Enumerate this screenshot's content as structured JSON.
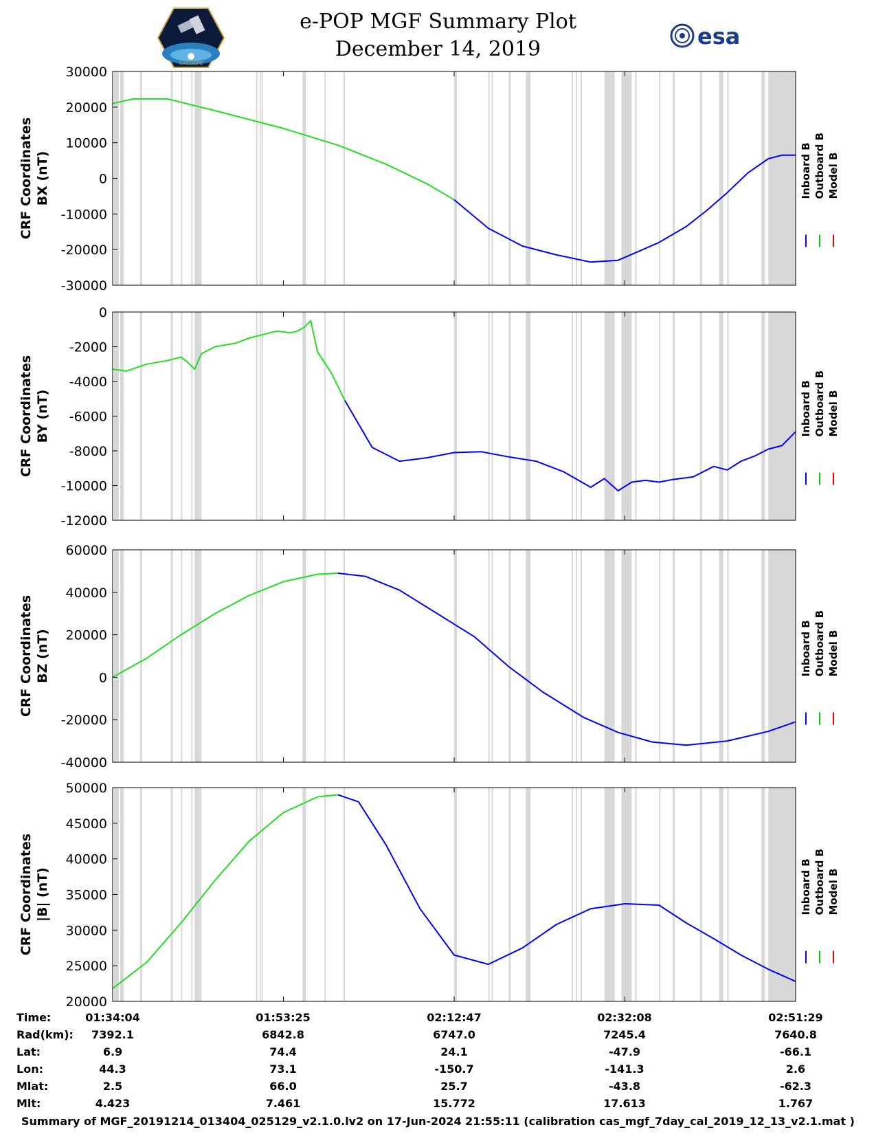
{
  "header": {
    "title_line1": "e-POP MGF Summary Plot",
    "title_line2": "December 14, 2019",
    "logo_left_text": "CASSIOPE",
    "logo_right_text": "esa"
  },
  "legend": {
    "entries": [
      {
        "label": "Inboard B",
        "color": "#0000ff"
      },
      {
        "label": "Outboard B",
        "color": "#00cc00"
      },
      {
        "label": "Model B",
        "color": "#ff0000"
      }
    ]
  },
  "colors": {
    "inboard": "#0000ff",
    "outboard": "#22dd22",
    "model": "#ff0000",
    "gap": "#d8d8d8"
  },
  "chart_data": [
    {
      "type": "line",
      "ylabel_line1": "CRF Coordinates",
      "ylabel_line2": "BX (nT)",
      "ylim": [
        -30000,
        30000
      ],
      "yticks": [
        30000,
        20000,
        10000,
        0,
        -10000,
        -20000,
        -30000
      ],
      "ytick_labels": [
        "30000",
        "20000",
        "10000",
        "0",
        "-10000",
        "-20000",
        "-30000"
      ],
      "series": [
        {
          "name": "Outboard B",
          "x": [
            0,
            0.03,
            0.08,
            0.15,
            0.25,
            0.33,
            0.4,
            0.46,
            0.5
          ],
          "y": [
            21000,
            22300,
            22300,
            19000,
            14000,
            9300,
            4000,
            -1500,
            -6000
          ]
        },
        {
          "name": "Inboard B",
          "x": [
            0.5,
            0.55,
            0.6,
            0.65,
            0.7,
            0.74,
            0.77,
            0.8,
            0.84,
            0.87,
            0.9,
            0.93,
            0.96,
            0.98,
            1.0
          ],
          "y": [
            -6000,
            -14000,
            -19000,
            -21500,
            -23500,
            -23000,
            -20500,
            -18000,
            -13500,
            -9000,
            -4000,
            1500,
            5500,
            6500,
            6500
          ]
        }
      ]
    },
    {
      "type": "line",
      "ylabel_line1": "CRF Coordinates",
      "ylabel_line2": "BY (nT)",
      "ylim": [
        -12000,
        0
      ],
      "yticks": [
        0,
        -2000,
        -4000,
        -6000,
        -8000,
        -10000,
        -12000
      ],
      "ytick_labels": [
        "0",
        "-2000",
        "-4000",
        "-6000",
        "-8000",
        "-10000",
        "-12000"
      ],
      "series": [
        {
          "name": "Outboard B",
          "x": [
            0,
            0.02,
            0.05,
            0.08,
            0.1,
            0.11,
            0.12,
            0.13,
            0.15,
            0.18,
            0.2,
            0.22,
            0.24,
            0.26,
            0.27,
            0.28,
            0.29,
            0.3,
            0.32,
            0.34
          ],
          "y": [
            -3300,
            -3400,
            -3000,
            -2800,
            -2600,
            -2900,
            -3300,
            -2400,
            -2000,
            -1800,
            -1500,
            -1300,
            -1100,
            -1200,
            -1100,
            -900,
            -500,
            -2300,
            -3500,
            -5100
          ]
        },
        {
          "name": "Inboard B",
          "x": [
            0.34,
            0.38,
            0.42,
            0.46,
            0.5,
            0.54,
            0.58,
            0.62,
            0.66,
            0.7,
            0.72,
            0.74,
            0.76,
            0.78,
            0.8,
            0.82,
            0.85,
            0.88,
            0.9,
            0.92,
            0.94,
            0.96,
            0.98,
            1.0
          ],
          "y": [
            -5100,
            -7800,
            -8600,
            -8400,
            -8100,
            -8050,
            -8350,
            -8600,
            -9200,
            -10100,
            -9600,
            -10300,
            -9800,
            -9700,
            -9800,
            -9650,
            -9500,
            -8900,
            -9100,
            -8600,
            -8300,
            -7900,
            -7700,
            -6900
          ]
        }
      ]
    },
    {
      "type": "line",
      "ylabel_line1": "CRF Coordinates",
      "ylabel_line2": "BZ (nT)",
      "ylim": [
        -40000,
        60000
      ],
      "yticks": [
        60000,
        40000,
        20000,
        0,
        -20000,
        -40000
      ],
      "ytick_labels": [
        "60000",
        "40000",
        "20000",
        "0",
        "-20000",
        "-40000"
      ],
      "series": [
        {
          "name": "Outboard B",
          "x": [
            0,
            0.05,
            0.1,
            0.15,
            0.2,
            0.25,
            0.3,
            0.33
          ],
          "y": [
            0,
            9000,
            20000,
            30000,
            38500,
            45000,
            48500,
            49000
          ]
        },
        {
          "name": "Inboard B",
          "x": [
            0.33,
            0.37,
            0.42,
            0.47,
            0.53,
            0.58,
            0.63,
            0.69,
            0.74,
            0.79,
            0.84,
            0.9,
            0.96,
            1.0
          ],
          "y": [
            49000,
            47500,
            41000,
            31000,
            19000,
            5000,
            -7000,
            -19000,
            -26000,
            -30500,
            -32000,
            -30000,
            -25500,
            -21000
          ]
        }
      ]
    },
    {
      "type": "line",
      "ylabel_line1": "CRF Coordinates",
      "ylabel_line2": "|B| (nT)",
      "ylim": [
        20000,
        50000
      ],
      "yticks": [
        50000,
        45000,
        40000,
        35000,
        30000,
        25000,
        20000
      ],
      "ytick_labels": [
        "50000",
        "45000",
        "40000",
        "35000",
        "30000",
        "25000",
        "20000"
      ],
      "series": [
        {
          "name": "Outboard B",
          "x": [
            0,
            0.05,
            0.1,
            0.15,
            0.2,
            0.25,
            0.3,
            0.33
          ],
          "y": [
            21800,
            25500,
            31000,
            37000,
            42500,
            46500,
            48700,
            49000
          ]
        },
        {
          "name": "Inboard B",
          "x": [
            0.33,
            0.36,
            0.4,
            0.45,
            0.5,
            0.55,
            0.6,
            0.65,
            0.7,
            0.75,
            0.8,
            0.84,
            0.88,
            0.92,
            0.96,
            1.0
          ],
          "y": [
            49000,
            48000,
            42000,
            33000,
            26500,
            25200,
            27500,
            30800,
            33000,
            33700,
            33500,
            31000,
            28800,
            26500,
            24500,
            22800
          ]
        }
      ]
    }
  ],
  "xaxis": {
    "tick_fractions": [
      0.0,
      0.25,
      0.5,
      0.75,
      1.0
    ],
    "gap_bands": [
      [
        0.002,
        0.009
      ],
      [
        0.011,
        0.016
      ],
      [
        0.04,
        0.043
      ],
      [
        0.085,
        0.088
      ],
      [
        0.1,
        0.102
      ],
      [
        0.115,
        0.117
      ],
      [
        0.12,
        0.13
      ],
      [
        0.21,
        0.212
      ],
      [
        0.215,
        0.217
      ],
      [
        0.218,
        0.22
      ],
      [
        0.278,
        0.283
      ],
      [
        0.31,
        0.312
      ],
      [
        0.338,
        0.34
      ],
      [
        0.5,
        0.504
      ],
      [
        0.55,
        0.552
      ],
      [
        0.555,
        0.557
      ],
      [
        0.58,
        0.583
      ],
      [
        0.605,
        0.612
      ],
      [
        0.672,
        0.674
      ],
      [
        0.678,
        0.68
      ],
      [
        0.685,
        0.687
      ],
      [
        0.72,
        0.735
      ],
      [
        0.745,
        0.76
      ],
      [
        0.765,
        0.767
      ],
      [
        0.8,
        0.802
      ],
      [
        0.82,
        0.823
      ],
      [
        0.86,
        0.863
      ],
      [
        0.888,
        0.894
      ],
      [
        0.9,
        0.902
      ],
      [
        0.95,
        0.955
      ],
      [
        0.96,
        1.0
      ]
    ]
  },
  "info_table": {
    "labels": [
      "Time:",
      "Rad(km):",
      "Lat:",
      "Lon:",
      "Mlat:",
      "Mlt:"
    ],
    "columns": [
      [
        "01:34:04",
        "7392.1",
        "6.9",
        "44.3",
        "2.5",
        "4.423"
      ],
      [
        "01:53:25",
        "6842.8",
        "74.4",
        "73.1",
        "66.0",
        "7.461"
      ],
      [
        "02:12:47",
        "6747.0",
        "24.1",
        "-150.7",
        "25.7",
        "15.772"
      ],
      [
        "02:32:08",
        "7245.4",
        "-47.9",
        "-141.3",
        "-43.8",
        "17.613"
      ],
      [
        "02:51:29",
        "7640.8",
        "-66.1",
        "2.6",
        "-62.3",
        "1.767"
      ]
    ]
  },
  "footer": {
    "text": "Summary of MGF_20191214_013404_025129_v2.1.0.lv2 on 17-Jun-2024 21:55:11 (calibration cas_mgf_7day_cal_2019_12_13_v2.1.mat )"
  }
}
